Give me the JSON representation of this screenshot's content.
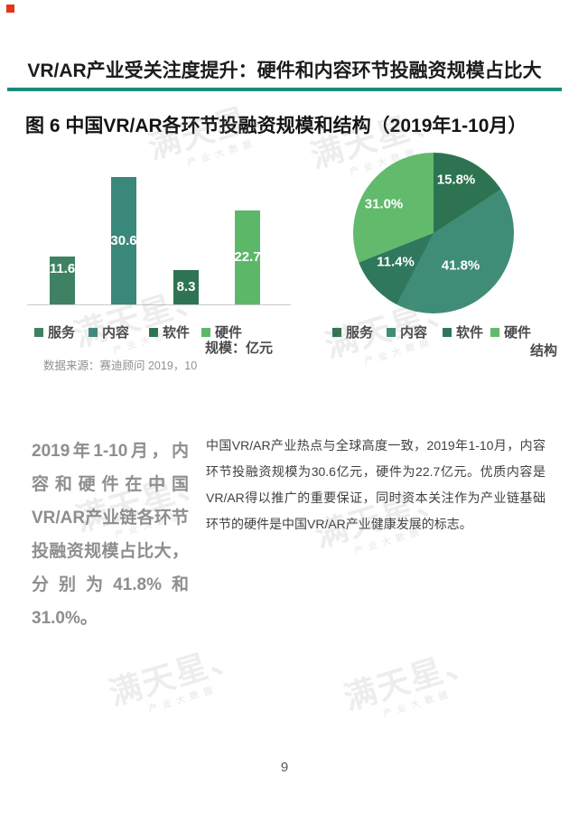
{
  "header": {
    "title": "VR/AR产业受关注度提升：硬件和内容环节投融资规模占比大"
  },
  "figure": {
    "title": "图 6  中国VR/AR各环节投融资规模和结构（2019年1-10月）"
  },
  "chart_data": [
    {
      "type": "bar",
      "title": "中国VR/AR各环节投融资规模（2019年1-10月）",
      "categories": [
        "服务",
        "内容",
        "软件",
        "硬件"
      ],
      "values": [
        11.6,
        30.6,
        8.3,
        22.7
      ],
      "value_labels": [
        "11.6",
        "30.6",
        "8.3",
        "22.7"
      ],
      "unit_label": "规模：亿元",
      "ylabel": "规模（亿元）",
      "ylim": [
        0,
        35
      ],
      "grid": false,
      "legend": [
        "服务",
        "内容",
        "软件",
        "硬件"
      ],
      "legend_position": "bottom",
      "colors": [
        "#3f8263",
        "#39887a",
        "#2e7452",
        "#5cb868"
      ],
      "source": "数据来源：赛迪顾问 2019，10"
    },
    {
      "type": "pie",
      "title": "中国VR/AR各环节投融资结构（2019年1-10月）",
      "categories": [
        "服务",
        "内容",
        "软件",
        "硬件"
      ],
      "values": [
        15.8,
        41.8,
        11.4,
        31.0
      ],
      "percent_labels": [
        "15.8%",
        "41.8%",
        "11.4%",
        "31.0%"
      ],
      "axis_label": "结构",
      "legend": [
        "服务",
        "内容",
        "软件",
        "硬件"
      ],
      "legend_position": "bottom",
      "colors": [
        "#2d7351",
        "#3f8d76",
        "#2f785e",
        "#62ba6c"
      ],
      "start_angle_deg": 0,
      "direction": "clockwise"
    }
  ],
  "body": {
    "left_emphasis": "2019年1-10月，内容和硬件在中国VR/AR产业链各环节投融资规模占比大，分别为41.8%和31.0%。",
    "right_paragraph": "中国VR/AR产业热点与全球高度一致，2019年1-10月，内容环节投融资规模为30.6亿元，硬件为22.7亿元。优质内容是VR/AR得以推广的重要保证，同时资本关注作为产业链基础环节的硬件是中国VR/AR产业健康发展的标志。"
  },
  "footer": {
    "page_number": "9"
  },
  "watermark": {
    "text": "满天星",
    "subtext": "产业大数据"
  },
  "colors": {
    "accent_rule": "#1b8a7b",
    "axis_line": "#c9c9c9"
  }
}
